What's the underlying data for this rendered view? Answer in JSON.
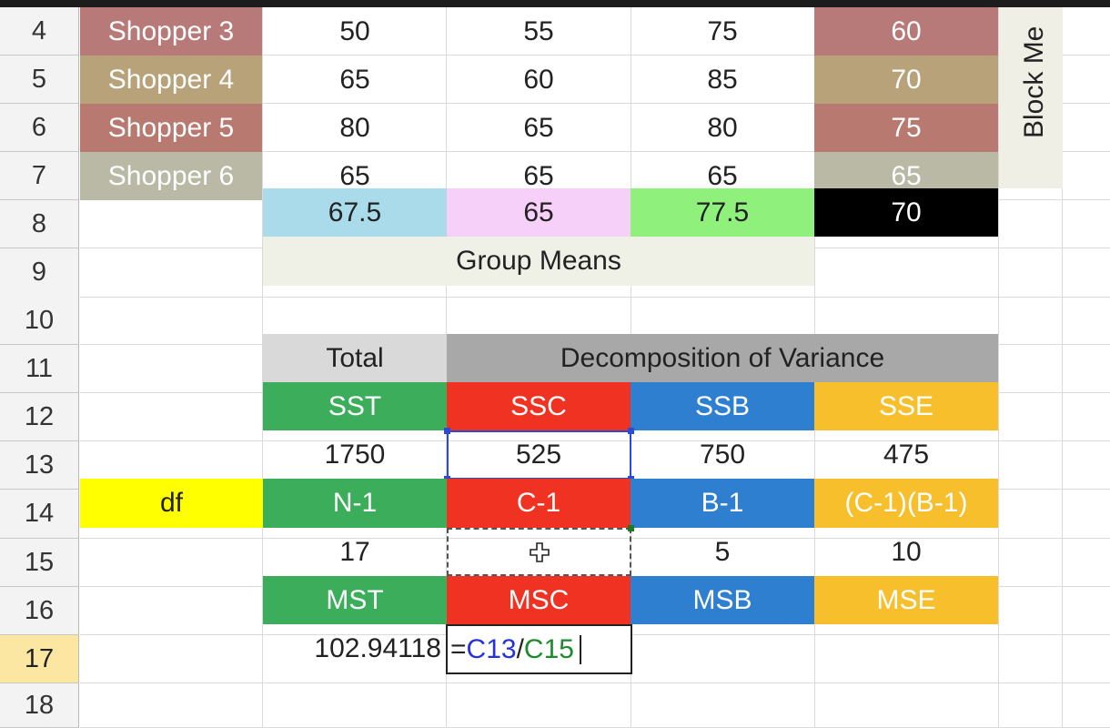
{
  "rows": [
    "4",
    "5",
    "6",
    "7",
    "8",
    "9",
    "10",
    "11",
    "12",
    "13",
    "14",
    "15",
    "16",
    "17",
    "18"
  ],
  "active_row": "17",
  "shoppers": [
    {
      "name": "Shopper 3",
      "c1": "50",
      "c2": "55",
      "c3": "75",
      "mean": "60",
      "color": "#b87a78"
    },
    {
      "name": "Shopper 4",
      "c1": "65",
      "c2": "60",
      "c3": "85",
      "mean": "70",
      "color": "#b8a27a"
    },
    {
      "name": "Shopper 5",
      "c1": "80",
      "c2": "65",
      "c3": "80",
      "mean": "75",
      "color": "#b87a70"
    },
    {
      "name": "Shopper 6",
      "c1": "65",
      "c2": "65",
      "c3": "65",
      "mean": "65",
      "color": "#b9b9a6"
    }
  ],
  "block_means_label": "Block Me",
  "group_means": {
    "values": [
      "67.5",
      "65",
      "77.5",
      "70"
    ],
    "colors": [
      "#a9dbea",
      "#f6d0f8",
      "#8ff17c",
      "#000000"
    ],
    "label": "Group Means"
  },
  "table": {
    "total_header": "Total",
    "decomp_header": "Decomposition of Variance",
    "ss_labels": [
      "SST",
      "SSC",
      "SSB",
      "SSE"
    ],
    "ss_values": [
      "1750",
      "525",
      "750",
      "475"
    ],
    "df_label": "df",
    "df_formulas": [
      "N-1",
      "C-1",
      "B-1",
      "(C-1)(B-1)"
    ],
    "df_values": [
      "17",
      "",
      "5",
      "10"
    ],
    "ms_labels": [
      "MST",
      "MSC",
      "MSB",
      "MSE"
    ],
    "mst_value": "102.94118",
    "formula_parts": [
      "=",
      "C13",
      "/",
      "C15"
    ]
  },
  "colors": {
    "green": "#3cad5a",
    "red": "#f03222",
    "blue": "#2f7fd0",
    "orange": "#f7bf2b",
    "yellow": "#ffff00",
    "total_bg": "#d9d9d9",
    "decomp_bg": "#a8a8a8",
    "group_means_bg": "#eff0e6"
  }
}
